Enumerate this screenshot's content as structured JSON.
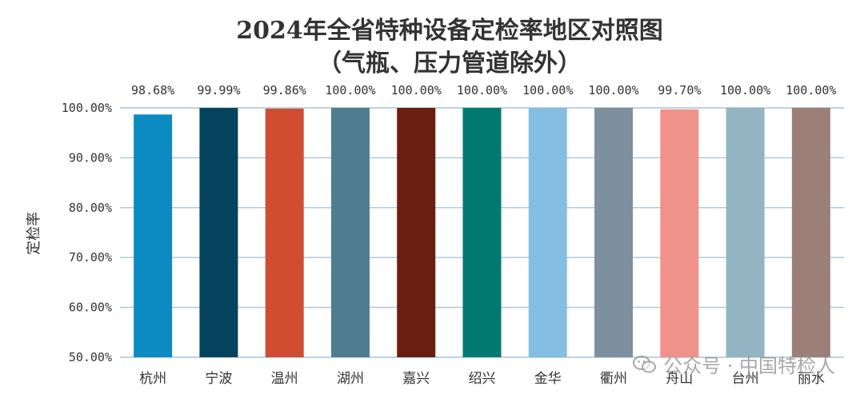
{
  "chart_data": {
    "type": "bar",
    "title": "2024年全省特种设备定检率地区对照图",
    "subtitle": "（气瓶、压力管道除外）",
    "xlabel": "",
    "ylabel": "定检率",
    "ylim": [
      50,
      100
    ],
    "yticks": [
      "50.00%",
      "60.00%",
      "70.00%",
      "80.00%",
      "90.00%",
      "100.00%"
    ],
    "ytick_values": [
      50,
      60,
      70,
      80,
      90,
      100
    ],
    "grid": true,
    "categories": [
      "杭州",
      "宁波",
      "温州",
      "湖州",
      "嘉兴",
      "绍兴",
      "金华",
      "衢州",
      "舟山",
      "台州",
      "丽水"
    ],
    "values": [
      98.68,
      99.99,
      99.86,
      100.0,
      100.0,
      100.0,
      100.0,
      100.0,
      99.7,
      100.0,
      100.0
    ],
    "value_labels": [
      "98.68%",
      "99.99%",
      "99.86%",
      "100.00%",
      "100.00%",
      "100.00%",
      "100.00%",
      "100.00%",
      "99.70%",
      "100.00%",
      "100.00%"
    ],
    "colors": [
      "#0b8bc1",
      "#04425e",
      "#d14d32",
      "#4f7d90",
      "#691e0f",
      "#007a70",
      "#84bfe3",
      "#7e909f",
      "#ef928a",
      "#93b4c3",
      "#9d7f7a"
    ]
  },
  "watermark": {
    "icon": "wechat-icon",
    "text": "公众号 · 中国特检人"
  }
}
